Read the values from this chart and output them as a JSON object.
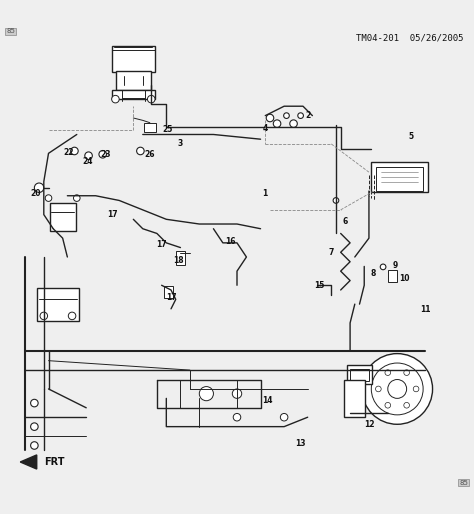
{
  "bg_color": "#efefef",
  "line_color": "#222222",
  "text_color": "#111111",
  "title_text": "TM04-201  05/26/2005",
  "title_fontsize": 8,
  "figsize": [
    4.74,
    5.14
  ],
  "dpi": 100,
  "corner_label_tl": "85",
  "corner_label_br": "85",
  "frt_label": "FRT"
}
